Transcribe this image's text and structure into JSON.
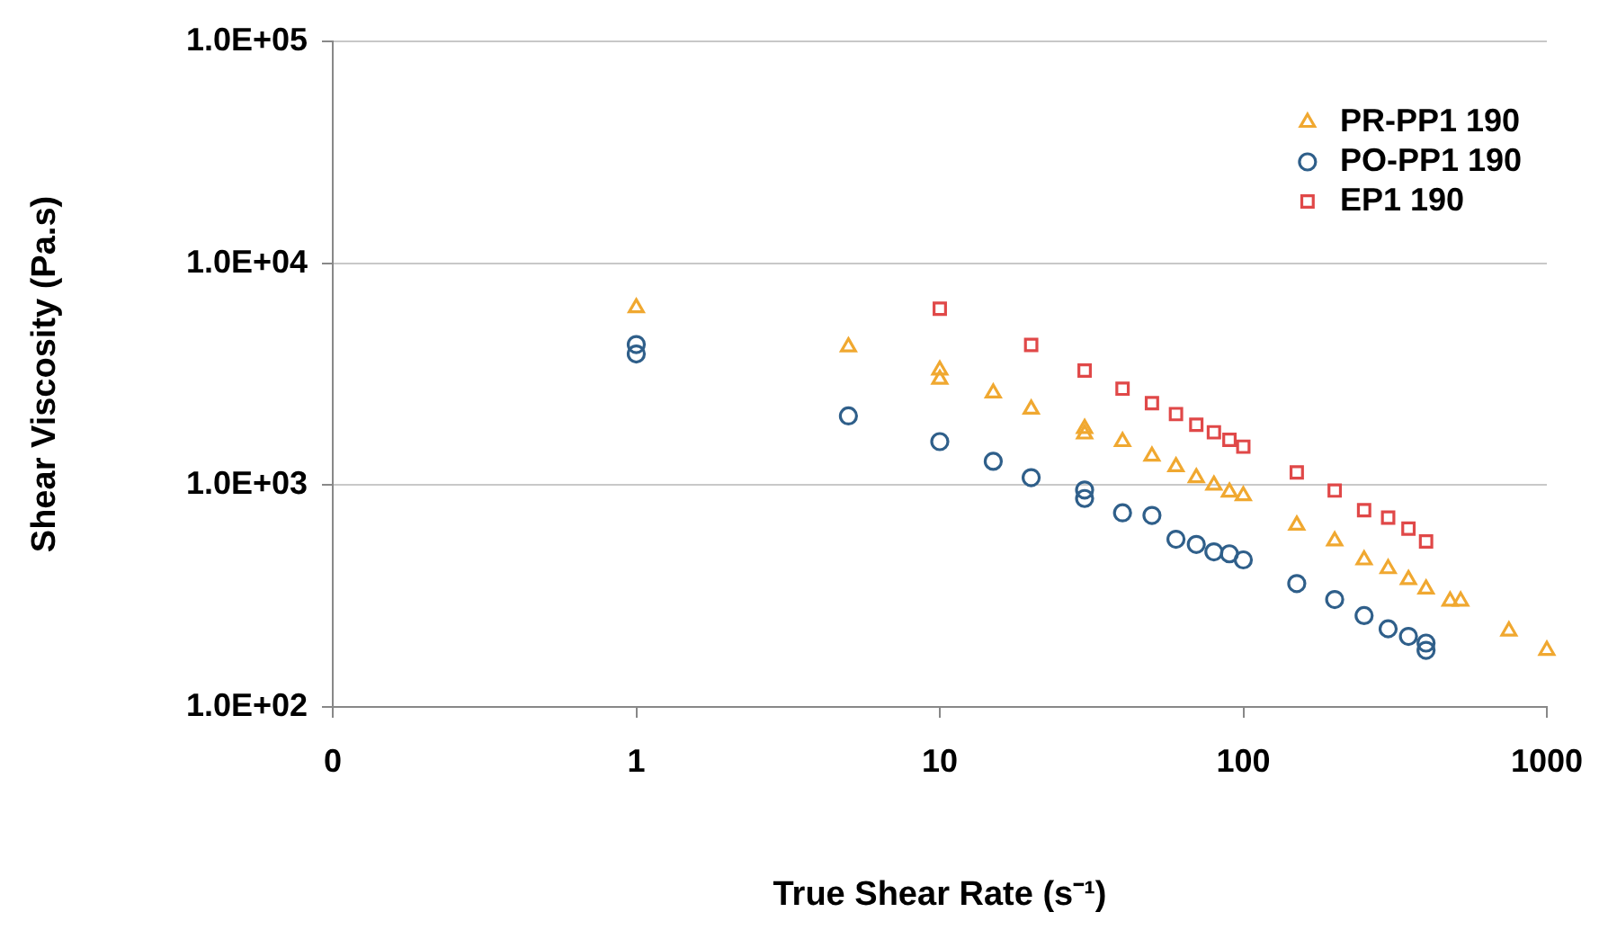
{
  "chart_data": {
    "type": "scatter",
    "xlabel": "True Shear Rate (s⁻¹)",
    "ylabel": "Shear Viscosity (Pa.s)",
    "log": "xy",
    "xlim": [
      0.1,
      1000
    ],
    "xticks": [
      {
        "value": 0.1,
        "label": "0"
      },
      1,
      10,
      100,
      1000
    ],
    "ylim": [
      100,
      100000
    ],
    "yticks": [
      {
        "value": 100,
        "label": "1.0E+02"
      },
      {
        "value": 1000,
        "label": "1.0E+03"
      },
      {
        "value": 10000,
        "label": "1.0E+04"
      },
      {
        "value": 100000,
        "label": "1.0E+05"
      }
    ],
    "grid": "y",
    "legend": "top right",
    "series": [
      {
        "name": "PR-PP1 190",
        "color": "#f0a830",
        "marker": "triangle",
        "x": [
          1,
          5,
          10,
          10,
          15,
          20,
          30,
          30,
          40,
          50,
          60,
          70,
          80,
          90,
          100,
          150,
          200,
          250,
          300,
          350,
          400,
          480,
          520,
          750,
          1000
        ],
        "values": [
          6300,
          4200,
          3300,
          3000,
          2600,
          2200,
          1800,
          1700,
          1570,
          1350,
          1210,
          1080,
          1000,
          930,
          895,
          660,
          560,
          460,
          420,
          375,
          340,
          300,
          300,
          220,
          180
        ]
      },
      {
        "name": "PO-PP1 190",
        "color": "#2f5f8a",
        "marker": "circle",
        "x": [
          1,
          1,
          5,
          10,
          15,
          20,
          30,
          30,
          40,
          50,
          60,
          70,
          80,
          90,
          100,
          150,
          200,
          250,
          300,
          350,
          400,
          400
        ],
        "values": [
          4300,
          3900,
          2050,
          1570,
          1280,
          1080,
          950,
          870,
          750,
          730,
          570,
          540,
          500,
          490,
          460,
          360,
          305,
          258,
          225,
          208,
          194,
          180
        ]
      },
      {
        "name": "EP1 190",
        "color": "#e04848",
        "marker": "square",
        "x": [
          10,
          20,
          30,
          40,
          50,
          60,
          70,
          80,
          90,
          100,
          150,
          200,
          250,
          300,
          350,
          400
        ],
        "values": [
          6240,
          4280,
          3280,
          2720,
          2340,
          2090,
          1870,
          1730,
          1600,
          1490,
          1140,
          945,
          770,
          714,
          636,
          557
        ]
      }
    ]
  }
}
